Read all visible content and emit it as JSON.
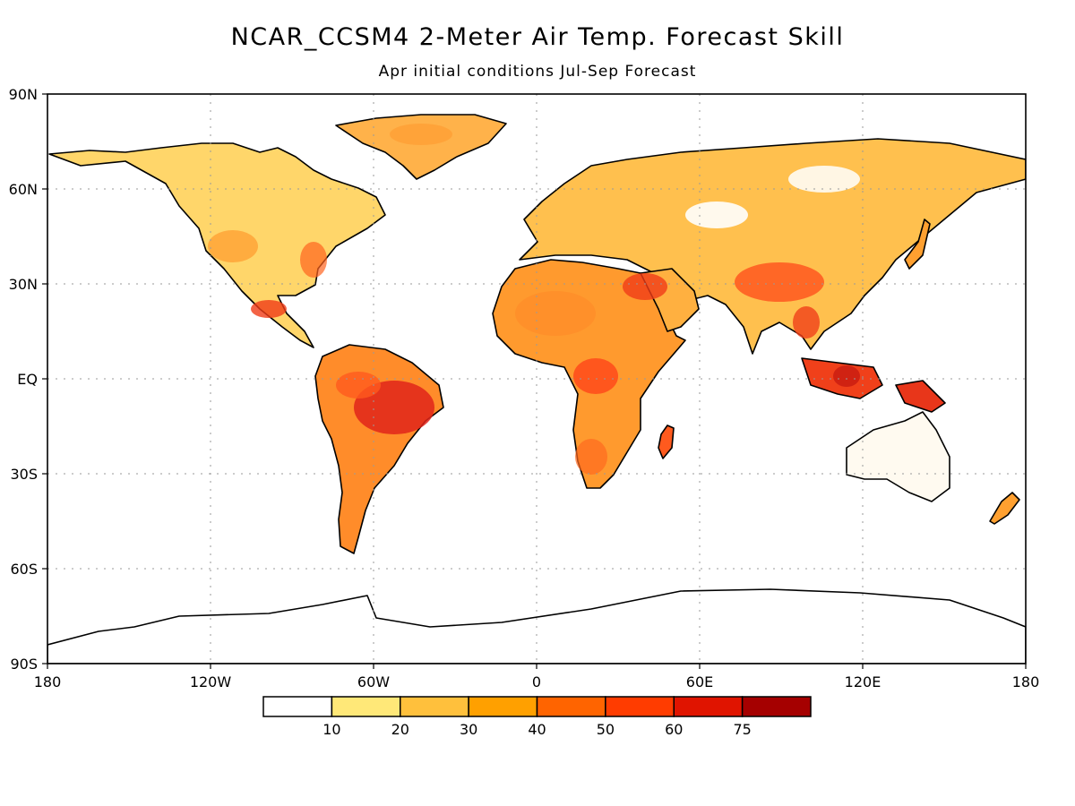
{
  "map": {
    "title": "NCAR_CCSM4 2-Meter Air Temp. Forecast Skill",
    "subtitle": "Apr initial conditions  Jul-Sep Forecast",
    "lat_labels": [
      "90N",
      "60N",
      "30N",
      "EQ",
      "30S",
      "60S",
      "90S"
    ],
    "lon_labels": [
      "180",
      "120W",
      "60W",
      "0",
      "60E",
      "120E",
      "180"
    ],
    "colorbar": {
      "labels": [
        "10",
        "20",
        "30",
        "40",
        "50",
        "60",
        "75"
      ],
      "colors": [
        "#ffffff",
        "#ffe878",
        "#ffc03c",
        "#ffa000",
        "#ff6400",
        "#ff3c00",
        "#e01400",
        "#a50000"
      ]
    }
  }
}
